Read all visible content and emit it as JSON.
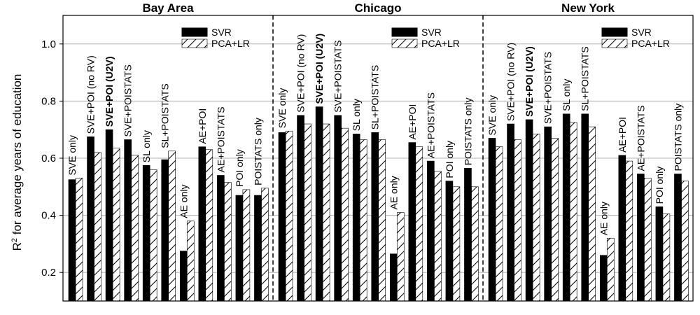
{
  "chart_data": {
    "type": "bar",
    "ylabel_main": "R",
    "ylabel_sup": "2",
    "ylabel_rest": " for average years of education",
    "ylim": [
      0.1,
      1.1
    ],
    "yticks": [
      "0.2",
      "0.4",
      "0.6",
      "0.8",
      "1.0"
    ],
    "ytick_values": [
      0.2,
      0.4,
      0.6,
      0.8,
      1.0
    ],
    "grid": true,
    "legend_position": "top-right",
    "highlight_color": "#ff0000",
    "series_names": [
      "SVR",
      "PCA+LR"
    ],
    "panels": [
      {
        "title": "Bay Area",
        "categories": [
          "SVE only",
          "SVE+POI (no RV)",
          "SVE+POI (U2V)",
          "SVE+POISTATS",
          "SL only",
          "SL+POISTATS",
          "AE only",
          "AE+POI",
          "AE+POISTATS",
          "POI only",
          "POISTATS only"
        ],
        "highlight": [
          false,
          false,
          true,
          false,
          false,
          false,
          false,
          false,
          false,
          false,
          false
        ],
        "series": [
          {
            "name": "SVR",
            "values": [
              0.525,
              0.675,
              0.7,
              0.665,
              0.575,
              0.595,
              0.275,
              0.64,
              0.54,
              0.47,
              0.47
            ]
          },
          {
            "name": "PCA+LR",
            "values": [
              0.53,
              0.62,
              0.635,
              0.61,
              0.56,
              0.625,
              0.38,
              0.63,
              0.515,
              0.49,
              0.495
            ]
          }
        ]
      },
      {
        "title": "Chicago",
        "categories": [
          "SVE only",
          "SVE+POI (no RV)",
          "SVE+POI (U2V)",
          "SVE+POISTATS",
          "SL only",
          "SL+POISTATS",
          "AE only",
          "AE+POI",
          "AE+POISTATS",
          "POI only",
          "POISTATS only"
        ],
        "highlight": [
          false,
          false,
          true,
          false,
          false,
          false,
          false,
          false,
          false,
          false,
          false
        ],
        "series": [
          {
            "name": "SVR",
            "values": [
              0.69,
              0.75,
              0.78,
              0.75,
              0.685,
              0.69,
              0.265,
              0.655,
              0.59,
              0.52,
              0.565
            ]
          },
          {
            "name": "PCA+LR",
            "values": [
              0.695,
              0.72,
              0.72,
              0.705,
              0.665,
              0.665,
              0.41,
              0.64,
              0.555,
              0.5,
              0.5
            ]
          }
        ]
      },
      {
        "title": "New York",
        "categories": [
          "SVE only",
          "SVE+POI (no RV)",
          "SVE+POI (U2V)",
          "SVE+POISTATS",
          "SL only",
          "SL+POISTATS",
          "AE only",
          "AE+POI",
          "AE+POISTATS",
          "POI only",
          "POISTATS only"
        ],
        "highlight": [
          false,
          false,
          true,
          false,
          false,
          false,
          false,
          false,
          false,
          false,
          false
        ],
        "series": [
          {
            "name": "SVR",
            "values": [
              0.67,
              0.72,
              0.735,
              0.71,
              0.755,
              0.755,
              0.26,
              0.61,
              0.545,
              0.43,
              0.545
            ]
          },
          {
            "name": "PCA+LR",
            "values": [
              0.64,
              0.665,
              0.685,
              0.67,
              0.725,
              0.71,
              0.32,
              0.59,
              0.53,
              0.405,
              0.52
            ]
          }
        ]
      }
    ]
  }
}
